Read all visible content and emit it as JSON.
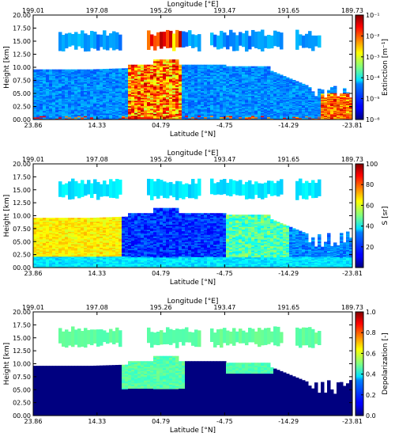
{
  "chart_data": [
    {
      "type": "heatmap",
      "title": "",
      "xlabel": "Latitude [°N]",
      "ylabel": "Height [km]",
      "x2label": "Longitude [°E]",
      "x_ticks": [
        "23.86",
        "14.33",
        "04.79",
        "-4.75",
        "-14.29",
        "-23.81"
      ],
      "x2_ticks": [
        "199.01",
        "197.08",
        "195.26",
        "193.47",
        "191.65",
        "189.73"
      ],
      "y_ticks": [
        "00.00",
        "02.50",
        "05.00",
        "07.50",
        "10.00",
        "12.50",
        "15.00",
        "17.50",
        "20.00"
      ],
      "ylim": [
        0,
        20
      ],
      "colorbar": {
        "label": "Extinction [m⁻¹]",
        "scale": "log",
        "range": [
          1e-06,
          0.1
        ],
        "ticks": [
          "10⁻¹",
          "10⁻²",
          "10⁻³",
          "10⁻⁴",
          "10⁻⁵",
          "10⁻⁶"
        ],
        "colormap": "jet"
      }
    },
    {
      "type": "heatmap",
      "title": "",
      "xlabel": "Latitude [°N]",
      "ylabel": "Height [km]",
      "x2label": "Longitude [°E]",
      "x_ticks": [
        "23.86",
        "14.33",
        "04.79",
        "-4.75",
        "-14.29",
        "-23.81"
      ],
      "x2_ticks": [
        "199.01",
        "197.08",
        "195.26",
        "193.47",
        "191.65",
        "189.73"
      ],
      "y_ticks": [
        "00.00",
        "02.50",
        "05.00",
        "07.50",
        "10.00",
        "12.50",
        "15.00",
        "17.50",
        "20.00"
      ],
      "ylim": [
        0,
        20
      ],
      "colorbar": {
        "label": "S [sr]",
        "scale": "linear",
        "range": [
          0,
          100
        ],
        "ticks": [
          "100",
          "80",
          "60",
          "40",
          "20"
        ],
        "colormap": "jet"
      }
    },
    {
      "type": "heatmap",
      "title": "",
      "xlabel": "Latitude [°N]",
      "ylabel": "Height [km]",
      "x2label": "Longitude [°E]",
      "x_ticks": [
        "23.86",
        "14.33",
        "04.79",
        "-4.75",
        "-14.29",
        "-23.81"
      ],
      "x2_ticks": [
        "199.01",
        "197.08",
        "195.26",
        "193.47",
        "191.65",
        "189.73"
      ],
      "y_ticks": [
        "00.00",
        "02.50",
        "05.00",
        "07.50",
        "10.00",
        "12.50",
        "15.00",
        "17.50",
        "20.00"
      ],
      "ylim": [
        0,
        20
      ],
      "colorbar": {
        "label": "Depolarization [-]",
        "scale": "linear",
        "range": [
          0,
          1
        ],
        "ticks": [
          "1.0",
          "0.8",
          "0.6",
          "0.4",
          "0.2",
          "0.0"
        ],
        "colormap": "jet"
      }
    }
  ]
}
